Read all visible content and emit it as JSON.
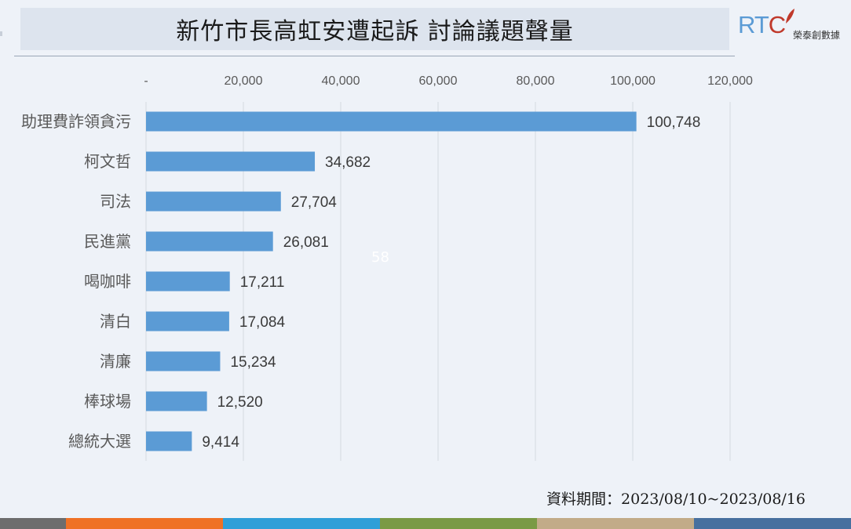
{
  "header": {
    "title": "新竹市長高虹安遭起訴 討論議題聲量"
  },
  "logo": {
    "mark_prefix": "RT",
    "mark_c": "C",
    "sub": "榮泰創數據"
  },
  "footer": {
    "date_range": "資料期間：2023/08/10~2023/08/16"
  },
  "stray_label": "58",
  "colors": {
    "bar": "#5b9bd5",
    "grid": "#d4d9e1",
    "strip": [
      "#6d6d6d",
      "#ef7125",
      "#2f9fd8",
      "#7a9a45",
      "#c2ab88",
      "#47709f"
    ]
  },
  "chart_data": {
    "type": "bar",
    "orientation": "horizontal",
    "categories": [
      "助理費詐領貪污",
      "柯文哲",
      "司法",
      "民進黨",
      "喝咖啡",
      "清白",
      "清廉",
      "棒球場",
      "總統大選"
    ],
    "values": [
      100748,
      34682,
      27704,
      26081,
      17211,
      17084,
      15234,
      12520,
      9414
    ],
    "data_labels": [
      "100,748",
      "34,682",
      "27,704",
      "26,081",
      "17,211",
      "17,084",
      "15,234",
      "12,520",
      "9,414"
    ],
    "xlim": [
      0,
      120000
    ],
    "ticks": [
      0,
      20000,
      40000,
      60000,
      80000,
      100000,
      120000
    ],
    "tick_labels": [
      "-",
      "20,000",
      "40,000",
      "60,000",
      "80,000",
      "100,000",
      "120,000"
    ],
    "axis_position": "top",
    "grid": true,
    "legend": "none"
  }
}
